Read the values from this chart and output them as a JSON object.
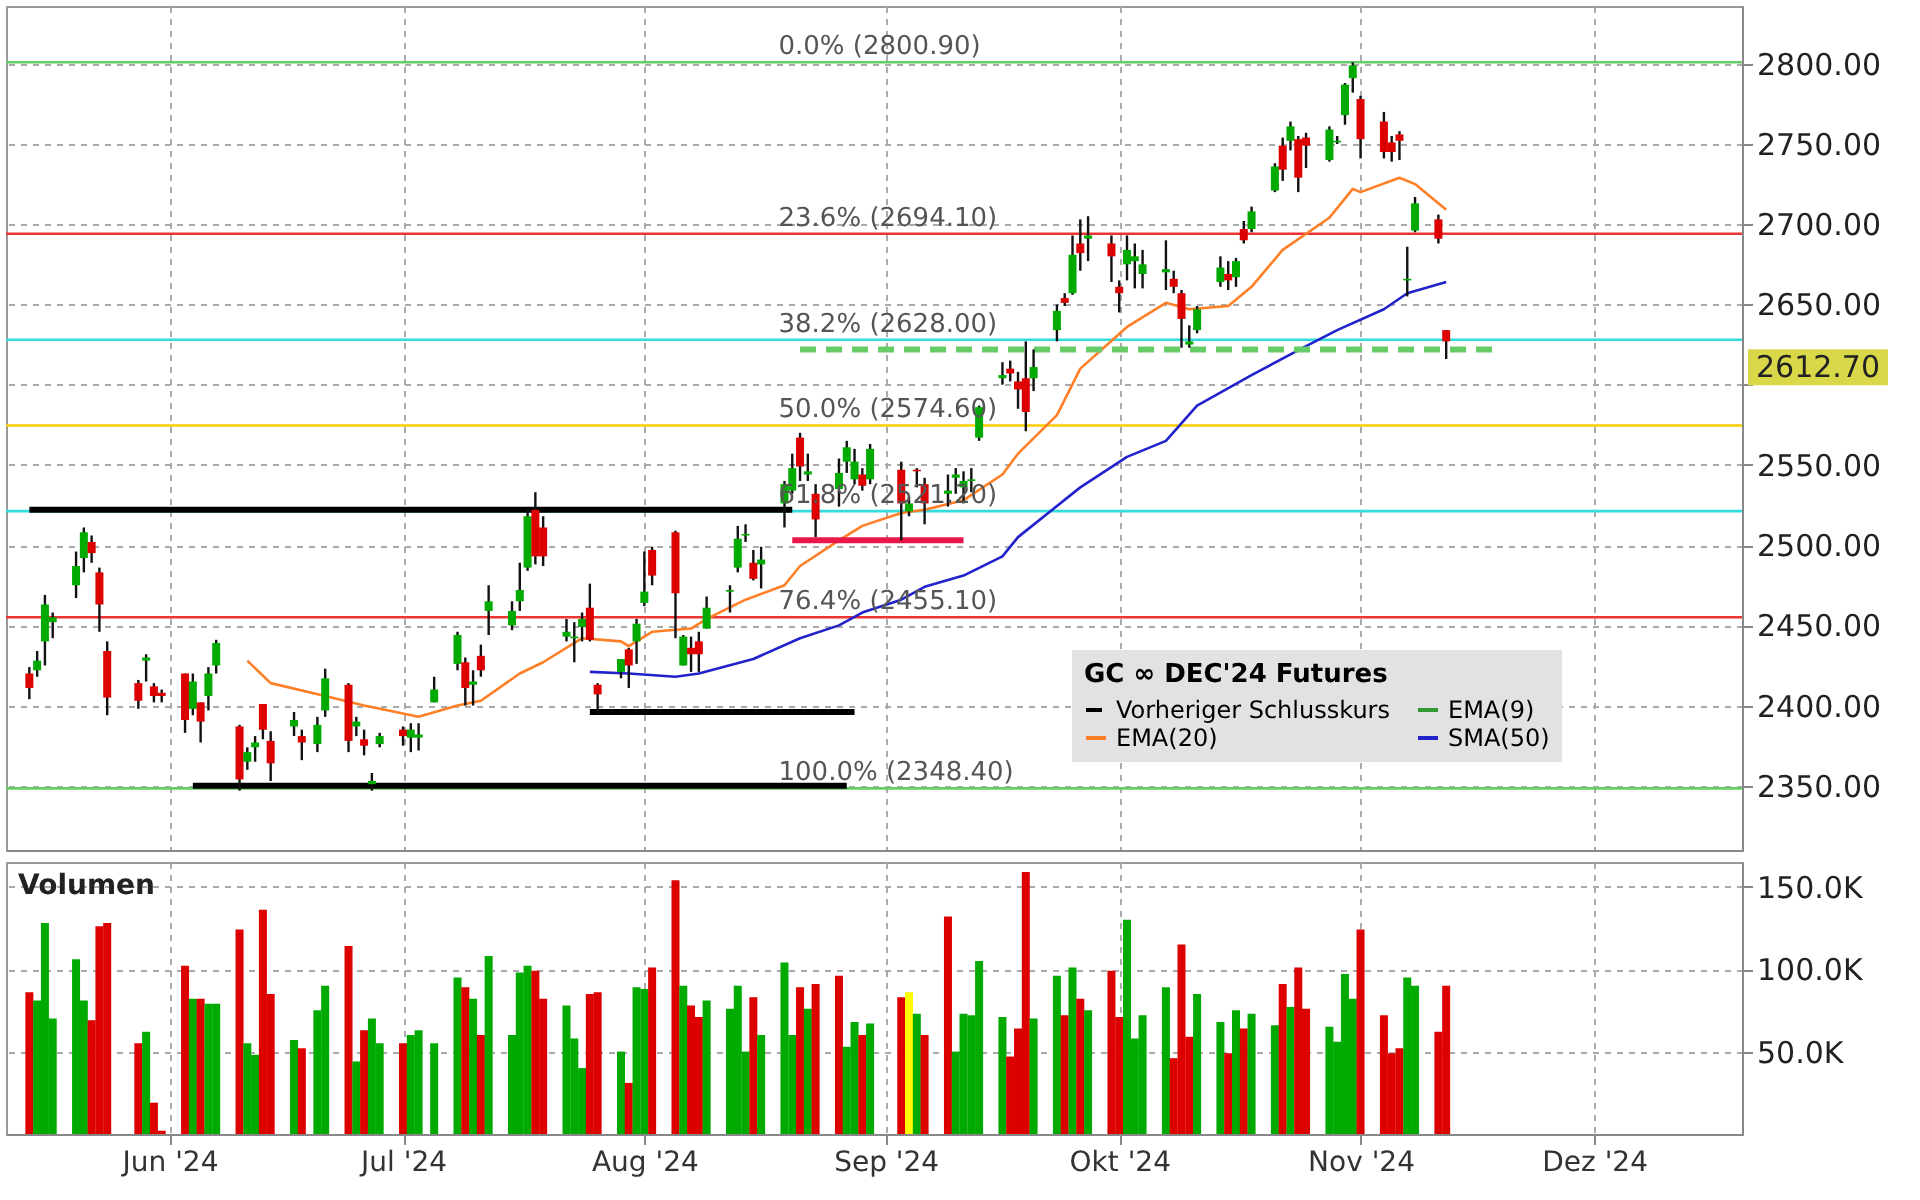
{
  "chart_data": [
    {
      "type": "candlestick",
      "legend_title": "GC ∞ DEC'24 Futures",
      "legend": "bottom right",
      "grid": true,
      "tick_labels": "y",
      "xlim": [
        "2024-05-11",
        "2024-12-20"
      ],
      "xticks": [
        {
          "value": "2024-06-01",
          "label": null
        },
        {
          "value": "2024-07-01",
          "label": null
        },
        {
          "value": "2024-08-01",
          "label": null
        },
        {
          "value": "2024-09-01",
          "label": null
        },
        {
          "value": "2024-10-01",
          "label": null
        },
        {
          "value": "2024-11-01",
          "label": null
        },
        {
          "value": "2024-12-01",
          "label": null
        }
      ],
      "ylim": [
        2310,
        2836
      ],
      "yticks": [
        {
          "value": 2350,
          "label": "2350.00"
        },
        {
          "value": 2400,
          "label": "2400.00"
        },
        {
          "value": 2450,
          "label": "2450.00"
        },
        {
          "value": 2500,
          "label": "2500.00"
        },
        {
          "value": 2550,
          "label": "2550.00"
        },
        {
          "value": 2600,
          "label": null
        },
        {
          "value": 2650,
          "label": "2650.00"
        },
        {
          "value": 2700,
          "label": "2700.00"
        },
        {
          "value": 2750,
          "label": "2750.00"
        },
        {
          "value": 2800,
          "label": "2800.00"
        }
      ],
      "x": [
        "2024-05-14",
        "2024-05-15",
        "2024-05-16",
        "2024-05-17",
        "2024-05-20",
        "2024-05-21",
        "2024-05-22",
        "2024-05-23",
        "2024-05-24",
        "2024-05-28",
        "2024-05-29",
        "2024-05-30",
        "2024-05-31",
        "2024-06-03",
        "2024-06-04",
        "2024-06-05",
        "2024-06-06",
        "2024-06-07",
        "2024-06-10",
        "2024-06-11",
        "2024-06-12",
        "2024-06-13",
        "2024-06-14",
        "2024-06-17",
        "2024-06-18",
        "2024-06-20",
        "2024-06-21",
        "2024-06-24",
        "2024-06-25",
        "2024-06-26",
        "2024-06-27",
        "2024-06-28",
        "2024-07-01",
        "2024-07-02",
        "2024-07-03",
        "2024-07-05",
        "2024-07-08",
        "2024-07-09",
        "2024-07-10",
        "2024-07-11",
        "2024-07-12",
        "2024-07-15",
        "2024-07-16",
        "2024-07-17",
        "2024-07-18",
        "2024-07-19",
        "2024-07-22",
        "2024-07-23",
        "2024-07-24",
        "2024-07-25",
        "2024-07-26",
        "2024-07-29",
        "2024-07-30",
        "2024-07-31",
        "2024-08-01",
        "2024-08-02",
        "2024-08-05",
        "2024-08-06",
        "2024-08-07",
        "2024-08-08",
        "2024-08-09",
        "2024-08-12",
        "2024-08-13",
        "2024-08-14",
        "2024-08-15",
        "2024-08-16",
        "2024-08-19",
        "2024-08-20",
        "2024-08-21",
        "2024-08-22",
        "2024-08-23",
        "2024-08-26",
        "2024-08-27",
        "2024-08-28",
        "2024-08-29",
        "2024-08-30",
        "2024-09-03",
        "2024-09-04",
        "2024-09-05",
        "2024-09-06",
        "2024-09-09",
        "2024-09-10",
        "2024-09-11",
        "2024-09-12",
        "2024-09-13",
        "2024-09-16",
        "2024-09-17",
        "2024-09-18",
        "2024-09-19",
        "2024-09-20",
        "2024-09-23",
        "2024-09-24",
        "2024-09-25",
        "2024-09-26",
        "2024-09-27",
        "2024-09-30",
        "2024-10-01",
        "2024-10-02",
        "2024-10-03",
        "2024-10-04",
        "2024-10-07",
        "2024-10-08",
        "2024-10-09",
        "2024-10-10",
        "2024-10-11",
        "2024-10-14",
        "2024-10-15",
        "2024-10-16",
        "2024-10-17",
        "2024-10-18",
        "2024-10-21",
        "2024-10-22",
        "2024-10-23",
        "2024-10-24",
        "2024-10-25",
        "2024-10-28",
        "2024-10-29",
        "2024-10-30",
        "2024-10-31",
        "2024-11-01",
        "2024-11-04",
        "2024-11-05",
        "2024-11-06",
        "2024-11-07",
        "2024-11-08",
        "2024-11-11",
        "2024-11-12"
      ],
      "ohlc": [
        [
          2420,
          2424,
          2404,
          2411
        ],
        [
          2422,
          2434,
          2418,
          2428
        ],
        [
          2440,
          2469,
          2425,
          2463
        ],
        [
          2452,
          2458,
          2442,
          2455
        ],
        [
          2475,
          2496,
          2467,
          2487
        ],
        [
          2492,
          2511,
          2483,
          2508
        ],
        [
          2502,
          2506,
          2489,
          2495
        ],
        [
          2483,
          2486,
          2446,
          2463
        ],
        [
          2434,
          2440,
          2394,
          2405
        ],
        [
          2414,
          2416,
          2398,
          2403
        ],
        [
          2428,
          2432,
          2415,
          2430
        ],
        [
          2412,
          2414,
          2402,
          2406
        ],
        [
          2408,
          2410,
          2402,
          2406
        ],
        [
          2420,
          2420,
          2383,
          2391
        ],
        [
          2398,
          2420,
          2394,
          2415
        ],
        [
          2402,
          2402,
          2377,
          2390
        ],
        [
          2406,
          2424,
          2397,
          2420
        ],
        [
          2425,
          2441,
          2420,
          2439
        ],
        [
          2387,
          2388,
          2347,
          2354
        ],
        [
          2365,
          2374,
          2360,
          2371
        ],
        [
          2374,
          2381,
          2365,
          2377
        ],
        [
          2401,
          2401,
          2379,
          2385
        ],
        [
          2378,
          2384,
          2353,
          2364
        ],
        [
          2387,
          2396,
          2381,
          2391
        ],
        [
          2381,
          2385,
          2366,
          2377
        ],
        [
          2376,
          2393,
          2371,
          2388
        ],
        [
          2397,
          2423,
          2393,
          2417
        ],
        [
          2413,
          2414,
          2371,
          2378
        ],
        [
          2387,
          2393,
          2381,
          2390
        ],
        [
          2379,
          2385,
          2369,
          2375
        ],
        [
          2351,
          2358,
          2347,
          2353
        ],
        [
          2376,
          2383,
          2374,
          2381
        ],
        [
          2385,
          2387,
          2375,
          2381
        ],
        [
          2380,
          2389,
          2371,
          2385
        ],
        [
          2380,
          2389,
          2372,
          2382
        ],
        [
          2402,
          2418,
          2402,
          2410
        ],
        [
          2426,
          2446,
          2422,
          2444
        ],
        [
          2427,
          2430,
          2400,
          2411
        ],
        [
          2413,
          2422,
          2400,
          2415
        ],
        [
          2431,
          2438,
          2418,
          2422
        ],
        [
          2459,
          2475,
          2444,
          2465
        ],
        [
          2450,
          2465,
          2447,
          2459
        ],
        [
          2465,
          2489,
          2459,
          2472
        ],
        [
          2486,
          2522,
          2484,
          2518
        ],
        [
          2522,
          2533,
          2488,
          2493
        ],
        [
          2511,
          2518,
          2487,
          2493
        ],
        [
          2443,
          2454,
          2440,
          2446
        ],
        [
          2442,
          2452,
          2427,
          2443
        ],
        [
          2449,
          2458,
          2440,
          2454
        ],
        [
          2461,
          2476,
          2440,
          2441
        ],
        [
          2413,
          2414,
          2395,
          2407
        ],
        [
          2421,
          2429,
          2417,
          2429
        ],
        [
          2435,
          2436,
          2411,
          2425
        ],
        [
          2440,
          2454,
          2426,
          2451
        ],
        [
          2464,
          2496,
          2462,
          2471
        ],
        [
          2497,
          2499,
          2475,
          2481
        ],
        [
          2508,
          2509,
          2442,
          2470
        ],
        [
          2425,
          2444,
          2425,
          2443
        ],
        [
          2436,
          2443,
          2421,
          2432
        ],
        [
          2440,
          2446,
          2421,
          2432
        ],
        [
          2448,
          2468,
          2448,
          2461
        ],
        [
          2471,
          2475,
          2458,
          2472
        ],
        [
          2486,
          2512,
          2483,
          2504
        ],
        [
          2506,
          2513,
          2502,
          2507
        ],
        [
          2489,
          2497,
          2478,
          2479
        ],
        [
          2488,
          2499,
          2473,
          2491
        ],
        [
          2526,
          2540,
          2511,
          2538
        ],
        [
          2534,
          2557,
          2532,
          2548
        ],
        [
          2567,
          2570,
          2540,
          2549
        ],
        [
          2544,
          2557,
          2540,
          2546
        ],
        [
          2532,
          2538,
          2505,
          2516
        ],
        [
          2535,
          2554,
          2524,
          2545
        ],
        [
          2552,
          2565,
          2545,
          2561
        ],
        [
          2541,
          2560,
          2538,
          2552
        ],
        [
          2544,
          2548,
          2534,
          2537
        ],
        [
          2541,
          2563,
          2538,
          2560
        ],
        [
          2547,
          2552,
          2503,
          2526
        ],
        [
          2521,
          2530,
          2518,
          2526
        ],
        [
          2547,
          2548,
          2536,
          2546
        ],
        [
          2538,
          2542,
          2513,
          2526
        ],
        [
          2532,
          2544,
          2524,
          2534
        ],
        [
          2542,
          2548,
          2532,
          2544
        ],
        [
          2536,
          2546,
          2526,
          2540
        ],
        [
          2540,
          2548,
          2533,
          2541
        ],
        [
          2567,
          2587,
          2565,
          2586
        ],
        [
          2604,
          2614,
          2600,
          2606
        ],
        [
          2610,
          2615,
          2602,
          2607
        ],
        [
          2602,
          2608,
          2585,
          2597
        ],
        [
          2604,
          2627,
          2571,
          2583
        ],
        [
          2604,
          2622,
          2596,
          2611
        ],
        [
          2634,
          2650,
          2627,
          2646
        ],
        [
          2654,
          2657,
          2649,
          2651
        ],
        [
          2657,
          2693,
          2656,
          2681
        ],
        [
          2688,
          2703,
          2671,
          2682
        ],
        [
          2691,
          2705,
          2677,
          2693
        ],
        [
          2688,
          2693,
          2664,
          2680
        ],
        [
          2661,
          2665,
          2645,
          2657
        ],
        [
          2675,
          2693,
          2665,
          2684
        ],
        [
          2677,
          2688,
          2660,
          2680
        ],
        [
          2669,
          2684,
          2660,
          2675
        ],
        [
          2670,
          2690,
          2659,
          2672
        ],
        [
          2666,
          2671,
          2657,
          2661
        ],
        [
          2657,
          2659,
          2623,
          2641
        ],
        [
          2625,
          2637,
          2623,
          2627
        ],
        [
          2634,
          2649,
          2632,
          2647
        ],
        [
          2664,
          2680,
          2661,
          2673
        ],
        [
          2669,
          2677,
          2659,
          2665
        ],
        [
          2667,
          2679,
          2661,
          2677
        ],
        [
          2697,
          2702,
          2688,
          2690
        ],
        [
          2697,
          2711,
          2695,
          2708
        ],
        [
          2721,
          2738,
          2720,
          2736
        ],
        [
          2749,
          2754,
          2727,
          2734
        ],
        [
          2752,
          2764,
          2746,
          2761
        ],
        [
          2753,
          2755,
          2720,
          2729
        ],
        [
          2754,
          2757,
          2735,
          2749
        ],
        [
          2740,
          2761,
          2739,
          2759
        ],
        [
          2751,
          2755,
          2750,
          2752
        ],
        [
          2768,
          2788,
          2762,
          2787
        ],
        [
          2791,
          2800.9,
          2782,
          2799
        ],
        [
          2778,
          2780,
          2741,
          2753
        ],
        [
          2764,
          2770,
          2741,
          2745
        ],
        [
          2751,
          2755,
          2739,
          2745
        ],
        [
          2756,
          2758,
          2740,
          2752
        ],
        [
          2665,
          2686,
          2655,
          2666
        ],
        [
          2696,
          2717,
          2695,
          2713
        ],
        [
          2703,
          2706,
          2688,
          2691
        ],
        [
          2634,
          2634,
          2616,
          2627
        ]
      ],
      "colors": [
        "#dd0000",
        "#00aa00",
        "#00aa00",
        "#00aa00",
        "#00aa00",
        "#00aa00",
        "#dd0000",
        "#dd0000",
        "#dd0000",
        "#dd0000",
        "#00aa00",
        "#dd0000",
        "#dd0000",
        "#dd0000",
        "#00aa00",
        "#dd0000",
        "#00aa00",
        "#00aa00",
        "#dd0000",
        "#00aa00",
        "#00aa00",
        "#dd0000",
        "#dd0000",
        "#00aa00",
        "#dd0000",
        "#00aa00",
        "#00aa00",
        "#dd0000",
        "#00aa00",
        "#dd0000",
        "#00aa00",
        "#00aa00",
        "#dd0000",
        "#00aa00",
        "#00aa00",
        "#00aa00",
        "#00aa00",
        "#dd0000",
        "#00aa00",
        "#dd0000",
        "#00aa00",
        "#00aa00",
        "#00aa00",
        "#00aa00",
        "#dd0000",
        "#dd0000",
        "#00aa00",
        "#00aa00",
        "#00aa00",
        "#dd0000",
        "#dd0000",
        "#00aa00",
        "#dd0000",
        "#00aa00",
        "#00aa00",
        "#dd0000",
        "#dd0000",
        "#00aa00",
        "#dd0000",
        "#dd0000",
        "#00aa00",
        "#00aa00",
        "#00aa00",
        "#00aa00",
        "#dd0000",
        "#00aa00",
        "#00aa00",
        "#00aa00",
        "#dd0000",
        "#00aa00",
        "#dd0000",
        "#00aa00",
        "#00aa00",
        "#00aa00",
        "#dd0000",
        "#00aa00",
        "#dd0000",
        "#00aa00",
        "#dd0000",
        "#dd0000",
        "#00aa00",
        "#00aa00",
        "#00aa00",
        "#00aa00",
        "#00aa00",
        "#00aa00",
        "#dd0000",
        "#dd0000",
        "#dd0000",
        "#00aa00",
        "#00aa00",
        "#dd0000",
        "#00aa00",
        "#dd0000",
        "#00aa00",
        "#dd0000",
        "#dd0000",
        "#00aa00",
        "#00aa00",
        "#00aa00",
        "#00aa00",
        "#dd0000",
        "#dd0000",
        "#00aa00",
        "#00aa00",
        "#00aa00",
        "#dd0000",
        "#00aa00",
        "#dd0000",
        "#00aa00",
        "#00aa00",
        "#dd0000",
        "#00aa00",
        "#dd0000",
        "#dd0000",
        "#00aa00",
        "#00aa00",
        "#00aa00",
        "#00aa00",
        "#dd0000",
        "#dd0000",
        "#dd0000",
        "#dd0000",
        "#00aa00",
        "#00aa00",
        "#dd0000",
        "#dd0000"
      ],
      "series": [
        {
          "type": "line",
          "name": "Vorheriger Schlusskurs",
          "color": "#000000",
          "line_style": "dashed",
          "values": [
            null,
            null,
            null,
            null,
            null,
            null,
            null,
            null,
            null,
            null,
            null,
            null,
            null,
            null,
            null,
            null,
            null,
            null,
            null,
            null,
            null,
            null,
            null,
            null,
            null,
            null,
            null,
            null,
            null,
            null,
            null,
            null,
            null,
            null,
            null,
            null,
            null,
            null,
            null,
            null,
            null,
            null,
            null,
            null,
            null,
            null,
            null,
            null,
            null,
            null,
            null,
            null,
            null,
            null,
            null,
            null,
            null,
            null,
            null,
            null,
            null,
            null,
            null,
            null,
            null,
            null,
            null,
            null,
            null,
            null,
            null,
            null,
            null,
            null,
            null,
            null,
            null,
            null,
            null,
            null,
            null,
            null,
            null,
            null,
            null,
            null,
            null,
            null,
            null,
            null,
            null,
            null,
            null,
            null,
            null,
            null,
            null,
            null,
            null,
            null,
            null,
            null,
            null,
            null,
            null,
            null,
            null,
            null,
            null,
            null,
            null,
            null,
            null,
            null,
            null,
            null,
            null,
            null,
            null,
            null,
            null,
            null,
            null,
            null,
            null,
            null,
            null
          ]
        },
        {
          "type": "line",
          "name": "EMA(20)",
          "color": "#ff7f27",
          "x": [
            "2024-06-11",
            "2024-06-14",
            "2024-06-21",
            "2024-06-26",
            "2024-07-03",
            "2024-07-08",
            "2024-07-11",
            "2024-07-16",
            "2024-07-19",
            "2024-07-24",
            "2024-07-29",
            "2024-07-30",
            "2024-08-02",
            "2024-08-07",
            "2024-08-09",
            "2024-08-14",
            "2024-08-19",
            "2024-08-21",
            "2024-08-26",
            "2024-08-29",
            "2024-09-03",
            "2024-09-06",
            "2024-09-11",
            "2024-09-16",
            "2024-09-18",
            "2024-09-23",
            "2024-09-26",
            "2024-10-02",
            "2024-10-07",
            "2024-10-10",
            "2024-10-15",
            "2024-10-18",
            "2024-10-22",
            "2024-10-28",
            "2024-10-31",
            "2024-11-01",
            "2024-11-06",
            "2024-11-08",
            "2024-11-12"
          ],
          "values": [
            2428,
            2414,
            2406,
            2400,
            2393,
            2400,
            2403,
            2420,
            2427,
            2442,
            2440,
            2437,
            2446,
            2448,
            2454,
            2466,
            2475,
            2487,
            2503,
            2512,
            2520,
            2522,
            2528,
            2544,
            2557,
            2581,
            2610,
            2636,
            2651,
            2647,
            2649,
            2661,
            2684,
            2704,
            2722,
            2720,
            2729,
            2725,
            2709
          ]
        },
        {
          "type": "line",
          "name": "EMA(9)",
          "color": "#339933",
          "values": [
            null,
            null,
            null,
            null,
            null,
            null,
            null,
            null,
            null,
            null,
            null,
            null,
            null,
            null,
            null,
            null,
            null,
            null,
            null,
            null,
            null,
            null,
            null,
            null,
            null,
            null,
            null,
            null,
            null,
            null,
            null,
            null,
            null,
            null,
            null,
            null,
            null,
            null,
            null,
            null,
            null,
            null,
            null,
            null,
            null,
            null,
            null,
            null,
            null,
            null,
            null,
            null,
            null,
            null,
            null,
            null,
            null,
            null,
            null,
            null,
            null,
            null,
            null,
            null,
            null,
            null,
            null,
            null,
            null,
            null,
            null,
            null,
            null,
            null,
            null,
            null,
            null,
            null,
            null,
            null,
            null,
            null,
            null,
            null,
            null,
            null,
            null,
            null,
            null,
            null,
            null,
            null,
            null,
            null,
            null,
            null,
            null,
            null,
            null,
            null,
            null,
            null,
            null,
            null,
            null,
            null,
            null,
            null,
            null,
            null,
            null,
            null,
            null,
            null,
            null,
            null,
            null,
            null,
            null,
            null,
            null,
            null,
            null,
            null,
            null,
            null,
            null
          ]
        },
        {
          "type": "line",
          "name": "SMA(50)",
          "color": "#2222cc",
          "x": [
            "2024-07-25",
            "2024-07-30",
            "2024-08-05",
            "2024-08-08",
            "2024-08-15",
            "2024-08-21",
            "2024-08-26",
            "2024-08-29",
            "2024-09-03",
            "2024-09-06",
            "2024-09-11",
            "2024-09-16",
            "2024-09-18",
            "2024-09-26",
            "2024-10-02",
            "2024-10-07",
            "2024-10-11",
            "2024-10-18",
            "2024-10-25",
            "2024-10-29",
            "2024-11-04",
            "2024-11-07",
            "2024-11-12"
          ],
          "values": [
            2421,
            2420,
            2418,
            2420,
            2429,
            2442,
            2450,
            2458,
            2466,
            2474,
            2481,
            2493,
            2505,
            2536,
            2555,
            2565,
            2587,
            2606,
            2624,
            2634,
            2647,
            2657,
            2664
          ]
        },
        {
          "type": "line",
          "color": "#000000",
          "x": [
            "2024-05-14",
            "2024-08-20"
          ],
          "values": [
            2522,
            2522
          ]
        },
        {
          "type": "line",
          "color": "#000000",
          "x": [
            "2024-07-25",
            "2024-08-28"
          ],
          "values": [
            2396,
            2396
          ]
        },
        {
          "type": "line",
          "color": "#000000",
          "x": [
            "2024-06-04",
            "2024-08-27"
          ],
          "values": [
            2350,
            2350
          ]
        },
        {
          "type": "line",
          "color": "#e8194a",
          "x": [
            "2024-08-20",
            "2024-09-11"
          ],
          "values": [
            2503,
            2503
          ]
        },
        {
          "type": "line",
          "color": "#66cc66",
          "line_style": "dashed",
          "x": [
            "2024-08-21",
            "2024-11-18"
          ],
          "values": [
            2622,
            2622
          ]
        }
      ],
      "ref_lines": [
        {
          "axis": "y",
          "value": 2800.9,
          "label": "0.0% (2800.90)",
          "color": "#66cc66"
        },
        {
          "axis": "y",
          "value": 2694.1,
          "label": "23.6% (2694.10)",
          "color": "#ee3333"
        },
        {
          "axis": "y",
          "value": 2628,
          "label": "38.2% (2628.00)",
          "color": "#33dddd"
        },
        {
          "axis": "y",
          "value": 2574.6,
          "label": "50.0% (2574.60)",
          "color": "#ffcc00"
        },
        {
          "axis": "y",
          "value": 2521.2,
          "label": "61.8% (2521.20)",
          "color": "#33dddd"
        },
        {
          "axis": "y",
          "value": 2455.1,
          "label": "76.4% (2455.10)",
          "color": "#ee3333"
        },
        {
          "axis": "y",
          "value": 2348.4,
          "label": "100.0% (2348.40)",
          "color": "#66cc66"
        }
      ],
      "annotations": [
        "2612.70"
      ]
    },
    {
      "type": "bar",
      "title": "Volumen",
      "grid": true,
      "xlim": [
        "2024-05-11",
        "2024-12-20"
      ],
      "xticks": [
        {
          "value": "2024-06-01",
          "label": "Jun '24"
        },
        {
          "value": "2024-07-01",
          "label": "Jul '24"
        },
        {
          "value": "2024-08-01",
          "label": "Aug '24"
        },
        {
          "value": "2024-09-01",
          "label": "Sep '24"
        },
        {
          "value": "2024-10-01",
          "label": "Okt '24"
        },
        {
          "value": "2024-11-01",
          "label": "Nov '24"
        },
        {
          "value": "2024-12-01",
          "label": "Dez '24"
        }
      ],
      "ylim": [
        0,
        165000
      ],
      "yticks": [
        {
          "value": 50000,
          "label": "50.0K"
        },
        {
          "value": 100000,
          "label": "100.0K"
        },
        {
          "value": 150000,
          "label": "150.0K"
        }
      ],
      "x": [
        "2024-05-14",
        "2024-05-15",
        "2024-05-16",
        "2024-05-17",
        "2024-05-20",
        "2024-05-21",
        "2024-05-22",
        "2024-05-23",
        "2024-05-24",
        "2024-05-28",
        "2024-05-29",
        "2024-05-30",
        "2024-05-31",
        "2024-06-03",
        "2024-06-04",
        "2024-06-05",
        "2024-06-06",
        "2024-06-07",
        "2024-06-10",
        "2024-06-11",
        "2024-06-12",
        "2024-06-13",
        "2024-06-14",
        "2024-06-17",
        "2024-06-18",
        "2024-06-20",
        "2024-06-21",
        "2024-06-24",
        "2024-06-25",
        "2024-06-26",
        "2024-06-27",
        "2024-06-28",
        "2024-07-01",
        "2024-07-02",
        "2024-07-03",
        "2024-07-05",
        "2024-07-08",
        "2024-07-09",
        "2024-07-10",
        "2024-07-11",
        "2024-07-12",
        "2024-07-15",
        "2024-07-16",
        "2024-07-17",
        "2024-07-18",
        "2024-07-19",
        "2024-07-22",
        "2024-07-23",
        "2024-07-24",
        "2024-07-25",
        "2024-07-26",
        "2024-07-29",
        "2024-07-30",
        "2024-07-31",
        "2024-08-01",
        "2024-08-02",
        "2024-08-05",
        "2024-08-06",
        "2024-08-07",
        "2024-08-08",
        "2024-08-09",
        "2024-08-12",
        "2024-08-13",
        "2024-08-14",
        "2024-08-15",
        "2024-08-16",
        "2024-08-19",
        "2024-08-20",
        "2024-08-21",
        "2024-08-22",
        "2024-08-23",
        "2024-08-26",
        "2024-08-27",
        "2024-08-28",
        "2024-08-29",
        "2024-08-30",
        "2024-09-03",
        "2024-09-04",
        "2024-09-05",
        "2024-09-06",
        "2024-09-09",
        "2024-09-10",
        "2024-09-11",
        "2024-09-12",
        "2024-09-13",
        "2024-09-16",
        "2024-09-17",
        "2024-09-18",
        "2024-09-19",
        "2024-09-20",
        "2024-09-23",
        "2024-09-24",
        "2024-09-25",
        "2024-09-26",
        "2024-09-27",
        "2024-09-30",
        "2024-10-01",
        "2024-10-02",
        "2024-10-03",
        "2024-10-04",
        "2024-10-07",
        "2024-10-08",
        "2024-10-09",
        "2024-10-10",
        "2024-10-11",
        "2024-10-14",
        "2024-10-15",
        "2024-10-16",
        "2024-10-17",
        "2024-10-18",
        "2024-10-21",
        "2024-10-22",
        "2024-10-23",
        "2024-10-24",
        "2024-10-25",
        "2024-10-28",
        "2024-10-29",
        "2024-10-30",
        "2024-10-31",
        "2024-11-01",
        "2024-11-04",
        "2024-11-05",
        "2024-11-06",
        "2024-11-07",
        "2024-11-08",
        "2024-11-11",
        "2024-11-12"
      ],
      "values": [
        86000,
        81000,
        128000,
        70000,
        106000,
        81000,
        69000,
        126000,
        128000,
        55000,
        62000,
        19000,
        2000,
        102000,
        82000,
        82000,
        79000,
        79000,
        124000,
        55000,
        48000,
        136000,
        85000,
        57000,
        52000,
        75000,
        90000,
        114000,
        44000,
        63000,
        70000,
        55000,
        55000,
        60000,
        63000,
        55000,
        95000,
        89000,
        82000,
        60000,
        108000,
        60000,
        98000,
        102000,
        99000,
        82000,
        78000,
        58000,
        40000,
        85000,
        86000,
        50000,
        31000,
        89000,
        88000,
        101000,
        154000,
        90000,
        78000,
        71000,
        81000,
        76000,
        90000,
        50000,
        83000,
        60000,
        104000,
        60000,
        89000,
        76000,
        91000,
        96000,
        53000,
        68000,
        60000,
        67000,
        83000,
        86000,
        73000,
        60000,
        132000,
        50000,
        73000,
        72000,
        105000,
        71000,
        47000,
        64000,
        159000,
        70000,
        96000,
        72000,
        101000,
        82000,
        75000,
        99000,
        71000,
        130000,
        58000,
        72000,
        89000,
        46000,
        115000,
        59000,
        85000,
        68000,
        49000,
        75000,
        64000,
        73000,
        66000,
        91000,
        77000,
        101000,
        76000,
        65000,
        56000,
        97000,
        82000,
        124000,
        72000,
        49000,
        52000,
        95000,
        90000,
        62000,
        90000
      ],
      "colors": [
        "#dd0000",
        "#00aa00",
        "#00aa00",
        "#00aa00",
        "#00aa00",
        "#00aa00",
        "#dd0000",
        "#dd0000",
        "#dd0000",
        "#dd0000",
        "#00aa00",
        "#dd0000",
        "#dd0000",
        "#dd0000",
        "#00aa00",
        "#dd0000",
        "#00aa00",
        "#00aa00",
        "#dd0000",
        "#00aa00",
        "#00aa00",
        "#dd0000",
        "#dd0000",
        "#00aa00",
        "#dd0000",
        "#00aa00",
        "#00aa00",
        "#dd0000",
        "#00aa00",
        "#dd0000",
        "#00aa00",
        "#00aa00",
        "#dd0000",
        "#00aa00",
        "#00aa00",
        "#00aa00",
        "#00aa00",
        "#dd0000",
        "#00aa00",
        "#dd0000",
        "#00aa00",
        "#00aa00",
        "#00aa00",
        "#00aa00",
        "#dd0000",
        "#dd0000",
        "#00aa00",
        "#00aa00",
        "#00aa00",
        "#dd0000",
        "#dd0000",
        "#00aa00",
        "#dd0000",
        "#00aa00",
        "#00aa00",
        "#dd0000",
        "#dd0000",
        "#00aa00",
        "#dd0000",
        "#dd0000",
        "#00aa00",
        "#00aa00",
        "#00aa00",
        "#00aa00",
        "#dd0000",
        "#00aa00",
        "#00aa00",
        "#00aa00",
        "#dd0000",
        "#00aa00",
        "#dd0000",
        "#dd0000",
        "#00aa00",
        "#00aa00",
        "#dd0000",
        "#00aa00",
        "#dd0000",
        "#ffff00",
        "#00aa00",
        "#dd0000",
        "#dd0000",
        "#00aa00",
        "#00aa00",
        "#00aa00",
        "#00aa00",
        "#00aa00",
        "#dd0000",
        "#dd0000",
        "#dd0000",
        "#00aa00",
        "#00aa00",
        "#dd0000",
        "#00aa00",
        "#dd0000",
        "#00aa00",
        "#dd0000",
        "#dd0000",
        "#00aa00",
        "#00aa00",
        "#00aa00",
        "#00aa00",
        "#dd0000",
        "#dd0000",
        "#dd0000",
        "#00aa00",
        "#00aa00",
        "#dd0000",
        "#00aa00",
        "#dd0000",
        "#00aa00",
        "#00aa00",
        "#dd0000",
        "#00aa00",
        "#dd0000",
        "#dd0000",
        "#00aa00",
        "#00aa00",
        "#00aa00",
        "#00aa00",
        "#dd0000",
        "#dd0000",
        "#dd0000",
        "#dd0000",
        "#00aa00",
        "#00aa00",
        "#dd0000",
        "#dd0000"
      ]
    }
  ]
}
